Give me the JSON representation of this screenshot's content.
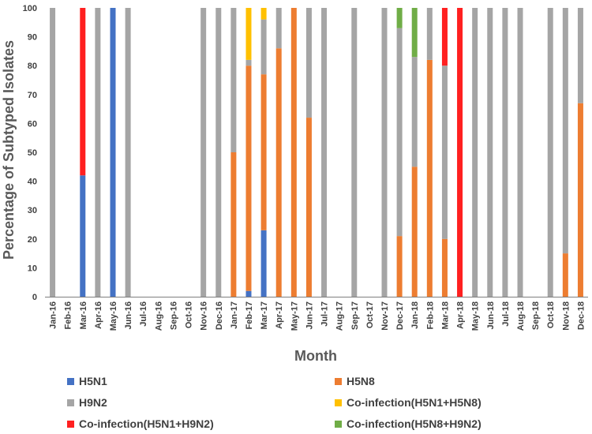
{
  "chart_data": {
    "type": "bar",
    "stacked": true,
    "xlabel": "Month",
    "ylabel": "Percentage of  Subtyped Isolates",
    "ylim": [
      0,
      100
    ],
    "yticks": [
      0,
      10,
      20,
      30,
      40,
      50,
      60,
      70,
      80,
      90,
      100
    ],
    "grid": false,
    "legend_position": "bottom",
    "categories": [
      "Jan-16",
      "Feb-16",
      "Mar-16",
      "Apr-16",
      "May-16",
      "Jun-16",
      "Jul-16",
      "Aug-16",
      "Sep-16",
      "Oct-16",
      "Nov-16",
      "Dec-16",
      "Jan-17",
      "Feb-17",
      "Mar-17",
      "Apr-17",
      "May-17",
      "Jun-17",
      "Jul-17",
      "Aug-17",
      "Sep-17",
      "Oct-17",
      "Nov-17",
      "Dec-17",
      "Jan-18",
      "Feb-18",
      "Mar-18",
      "Apr-18",
      "May-18",
      "Jun-18",
      "Jul-18",
      "Aug-18",
      "Sep-18",
      "Oct-18",
      "Nov-18",
      "Dec-18"
    ],
    "series": [
      {
        "name": "H5N1",
        "color": "#4472c4",
        "values": [
          0,
          0,
          42,
          0,
          100,
          0,
          0,
          0,
          0,
          0,
          0,
          0,
          0,
          2,
          23,
          0,
          0,
          0,
          0,
          0,
          0,
          0,
          0,
          0,
          0,
          0,
          0,
          0,
          0,
          0,
          0,
          0,
          0,
          0,
          0,
          0
        ]
      },
      {
        "name": "H5N8",
        "color": "#ed7d31",
        "values": [
          0,
          0,
          0,
          0,
          0,
          0,
          0,
          0,
          0,
          0,
          0,
          0,
          50,
          78,
          54,
          86,
          100,
          62,
          0,
          0,
          0,
          0,
          0,
          21,
          45,
          82,
          20,
          0,
          0,
          0,
          0,
          0,
          0,
          0,
          15,
          67
        ]
      },
      {
        "name": "H9N2",
        "color": "#a5a5a5",
        "values": [
          100,
          0,
          0,
          100,
          0,
          100,
          0,
          0,
          0,
          0,
          100,
          100,
          50,
          2,
          19,
          14,
          0,
          38,
          100,
          0,
          100,
          0,
          100,
          72,
          38,
          18,
          60,
          0,
          100,
          100,
          100,
          100,
          0,
          100,
          85,
          33
        ]
      },
      {
        "name": "Co-infection(H5N1+H5N8)",
        "color": "#ffc000",
        "values": [
          0,
          0,
          0,
          0,
          0,
          0,
          0,
          0,
          0,
          0,
          0,
          0,
          0,
          18,
          4,
          0,
          0,
          0,
          0,
          0,
          0,
          0,
          0,
          0,
          0,
          0,
          0,
          0,
          0,
          0,
          0,
          0,
          0,
          0,
          0,
          0
        ]
      },
      {
        "name": "Co-infection(H5N1+H9N2)",
        "color": "#ff2020",
        "values": [
          0,
          0,
          58,
          0,
          0,
          0,
          0,
          0,
          0,
          0,
          0,
          0,
          0,
          0,
          0,
          0,
          0,
          0,
          0,
          0,
          0,
          0,
          0,
          0,
          0,
          0,
          20,
          100,
          0,
          0,
          0,
          0,
          0,
          0,
          0,
          0
        ]
      },
      {
        "name": "Co-infection(H5N8+H9N2)",
        "color": "#70ad47",
        "values": [
          0,
          0,
          0,
          0,
          0,
          0,
          0,
          0,
          0,
          0,
          0,
          0,
          0,
          0,
          0,
          0,
          0,
          0,
          0,
          0,
          0,
          0,
          0,
          7,
          17,
          0,
          0,
          0,
          0,
          0,
          0,
          0,
          0,
          0,
          0,
          0
        ]
      }
    ]
  }
}
